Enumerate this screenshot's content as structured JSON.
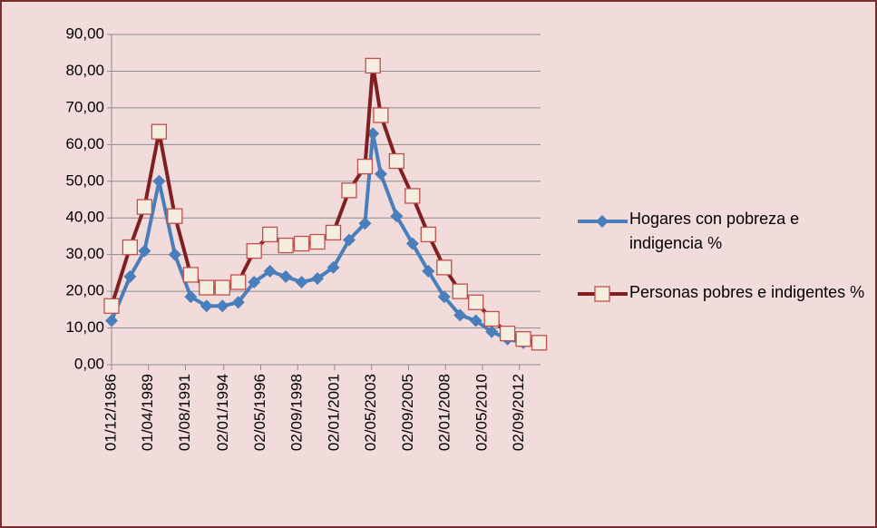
{
  "chart_data": {
    "type": "line",
    "x": [
      0,
      14,
      25,
      36,
      48,
      60,
      72,
      84,
      96,
      108,
      120,
      132,
      144,
      156,
      168,
      180,
      192,
      198,
      204,
      216,
      228,
      240,
      252,
      264,
      276,
      288,
      300,
      312,
      324
    ],
    "series": [
      {
        "name": "Hogares con pobreza e indigencia %",
        "color": "#4a7ebb",
        "marker": "diamond",
        "values": [
          12,
          24,
          31,
          50,
          30,
          18.5,
          16,
          16,
          17,
          22.5,
          25.5,
          24,
          22.5,
          23.5,
          26.5,
          34,
          38.5,
          63,
          52,
          40.5,
          33,
          25.5,
          18.5,
          13.5,
          12,
          9,
          7,
          6,
          5.5
        ]
      },
      {
        "name": "Personas pobres e indigentes %",
        "color": "#7f1f1f",
        "marker": "square",
        "values": [
          16,
          32,
          43,
          63.5,
          40.5,
          24.5,
          21,
          21,
          22.5,
          31,
          35.5,
          32.5,
          33,
          33.5,
          36,
          47.5,
          54,
          81.5,
          68,
          55.5,
          46,
          35.5,
          26.5,
          20,
          17,
          12.5,
          8.5,
          7,
          6
        ]
      }
    ],
    "xlim": [
      0,
      325
    ],
    "xticks": [
      {
        "value": 0,
        "label": "01/12/1986"
      },
      {
        "value": 28,
        "label": "01/04/1989"
      },
      {
        "value": 56,
        "label": "01/08/1991"
      },
      {
        "value": 85,
        "label": "02/01/1994"
      },
      {
        "value": 113,
        "label": "02/05/1996"
      },
      {
        "value": 141,
        "label": "02/09/1998"
      },
      {
        "value": 169,
        "label": "02/01/2001"
      },
      {
        "value": 197,
        "label": "02/05/2003"
      },
      {
        "value": 225,
        "label": "02/09/2005"
      },
      {
        "value": 253,
        "label": "02/01/2008"
      },
      {
        "value": 281,
        "label": "02/05/2010"
      },
      {
        "value": 309,
        "label": "02/09/2012"
      }
    ],
    "ylim": [
      0,
      90
    ],
    "yticks": [
      {
        "value": 0,
        "label": "0,00"
      },
      {
        "value": 10,
        "label": "10,00"
      },
      {
        "value": 20,
        "label": "20,00"
      },
      {
        "value": 30,
        "label": "30,00"
      },
      {
        "value": 40,
        "label": "40,00"
      },
      {
        "value": 50,
        "label": "50,00"
      },
      {
        "value": 60,
        "label": "60,00"
      },
      {
        "value": 70,
        "label": "70,00"
      },
      {
        "value": 80,
        "label": "80,00"
      },
      {
        "value": 90,
        "label": "90,00"
      }
    ],
    "grid": true,
    "legend": "right"
  }
}
